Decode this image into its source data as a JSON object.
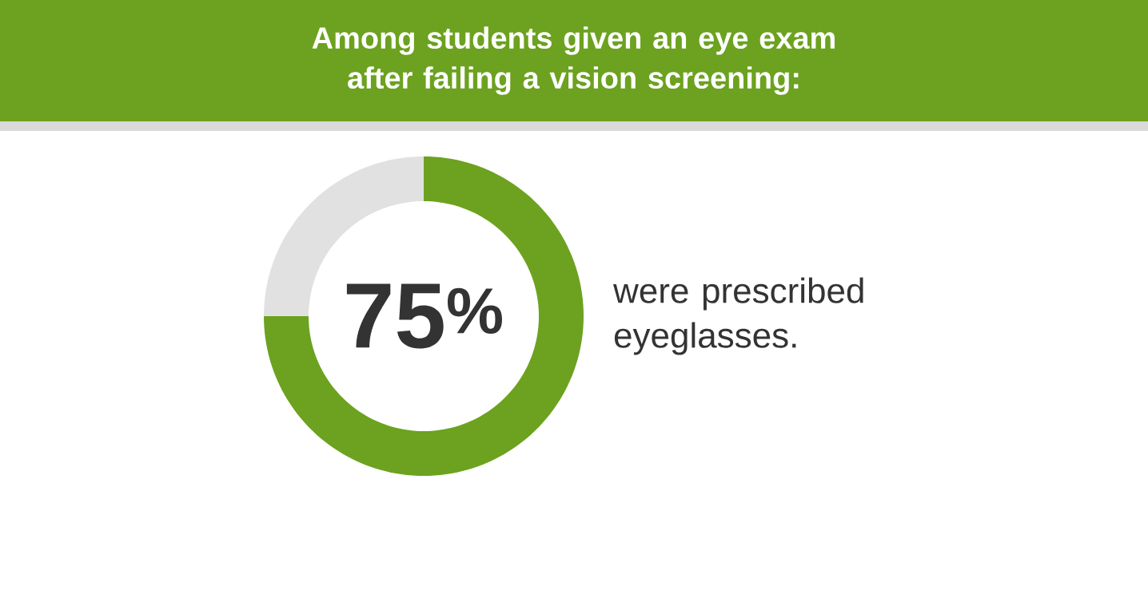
{
  "chart_data": {
    "type": "donut",
    "title": "Among students given an eye exam after failing a vision screening:",
    "categories": [
      null,
      null
    ],
    "values": [
      75,
      25
    ],
    "colors": [
      "#6ca21f",
      "#e1e1e1"
    ],
    "value_labels": [
      "75$^{%}$",
      null
    ],
    "annotations": [
      "were prescribed eyeglasses."
    ]
  }
}
